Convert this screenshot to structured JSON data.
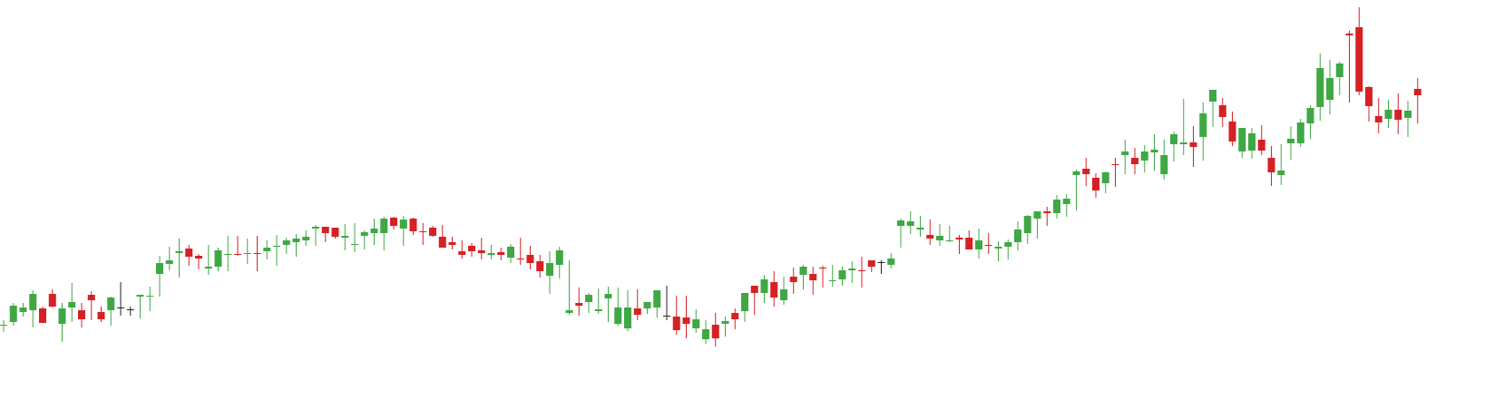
{
  "colors": {
    "up": "#3fa845",
    "down": "#d62124",
    "doji": "#222222",
    "background": "#ffffff"
  },
  "chart_data": {
    "type": "candlestick",
    "title": "",
    "xlabel": "",
    "ylabel": "",
    "grid": false,
    "legend": "none",
    "ylim": [
      0,
      452
    ],
    "x": [
      1,
      2,
      3,
      4,
      5,
      6,
      7,
      8,
      9,
      10,
      11,
      12,
      13,
      14,
      15,
      16,
      17,
      18,
      19,
      20,
      21,
      22,
      23,
      24,
      25,
      26,
      27,
      28,
      29,
      30,
      31,
      32,
      33,
      34,
      35,
      36,
      37,
      38,
      39,
      40,
      41,
      42,
      43,
      44,
      45,
      46,
      47,
      48,
      49,
      50,
      51,
      52,
      53,
      54,
      55,
      56,
      57,
      58,
      59,
      60,
      61,
      62,
      63,
      64,
      65,
      66,
      67,
      68,
      69,
      70,
      71,
      72,
      73,
      74,
      75,
      76,
      77,
      78,
      79,
      80,
      81,
      82,
      83,
      84,
      85,
      86,
      87,
      88,
      89,
      90,
      91,
      92,
      93,
      94,
      95,
      96,
      97,
      98,
      99,
      100,
      101,
      102,
      103,
      104,
      105,
      106,
      107,
      108,
      109,
      110,
      111,
      112,
      113,
      114,
      115,
      116,
      117,
      118,
      119,
      120,
      121,
      122,
      123,
      124,
      125,
      126,
      127,
      128,
      129,
      130,
      131,
      132,
      133,
      134,
      135,
      136,
      137,
      138,
      139,
      140,
      141,
      142,
      143,
      144,
      145,
      146
    ],
    "open": [
      93,
      97,
      108,
      110,
      112,
      128,
      95,
      113,
      110,
      127,
      108,
      110,
      113,
      111,
      125,
      125,
      150,
      161,
      173,
      178,
      170,
      156,
      158,
      171,
      172,
      172,
      173,
      175,
      180,
      182,
      185,
      187,
      200,
      202,
      201,
      190,
      182,
      192,
      195,
      195,
      212,
      200,
      211,
      197,
      201,
      191,
      185,
      175,
      181,
      176,
      171,
      174,
      168,
      167,
      171,
      164,
      148,
      160,
      107,
      118,
      119,
      109,
      123,
      95,
      90,
      112,
      112,
      113,
      104,
      103,
      102,
      90,
      78,
      94,
      95,
      107,
      109,
      137,
      129,
      141,
      121,
      147,
      149,
      150,
      157,
      142,
      144,
      154,
      154,
      165,
      163,
      160,
      203,
      203,
      199,
      193,
      187,
      186,
      190,
      190,
      177,
      182,
      178,
      180,
      185,
      195,
      211,
      219,
      217,
      227,
      259,
      266,
      256,
      250,
      271,
      281,
      278,
      275,
      284,
      260,
      293,
      293,
      295,
      301,
      340,
      336,
      318,
      285,
      286,
      298,
      278,
      259,
      294,
      294,
      316,
      334,
      342,
      367,
      415,
      422,
      356,
      324,
      321,
      331,
      322,
      354
    ],
    "close": [
      94,
      115,
      113,
      128,
      96,
      114,
      112,
      119,
      100,
      121,
      100,
      124,
      113,
      111,
      127,
      126,
      162,
      165,
      175,
      169,
      167,
      158,
      176,
      172,
      171,
      173,
      172,
      179,
      181,
      187,
      189,
      191,
      202,
      195,
      191,
      192,
      183,
      196,
      200,
      211,
      203,
      210,
      197,
      196,
      192,
      179,
      182,
      171,
      175,
      173,
      173,
      171,
      180,
      166,
      162,
      153,
      162,
      176,
      110,
      115,
      127,
      111,
      128,
      113,
      113,
      105,
      119,
      132,
      104,
      88,
      95,
      100,
      89,
      79,
      98,
      100,
      129,
      129,
      144,
      124,
      133,
      141,
      158,
      143,
      156,
      143,
      154,
      156,
      153,
      158,
      163,
      167,
      209,
      208,
      201,
      189,
      192,
      187,
      188,
      177,
      187,
      181,
      180,
      185,
      199,
      214,
      219,
      217,
      232,
      233,
      263,
      260,
      242,
      262,
      270,
      285,
      271,
      285,
      287,
      281,
      304,
      295,
      290,
      327,
      353,
      323,
      296,
      311,
      305,
      286,
      262,
      264,
      299,
      317,
      333,
      377,
      366,
      382,
      413,
      351,
      335,
      317,
      331,
      320,
      330,
      347
    ],
    "high": [
      99,
      118,
      118,
      132,
      114,
      133,
      118,
      140,
      118,
      131,
      114,
      125,
      141,
      114,
      127,
      136,
      170,
      180,
      189,
      182,
      172,
      182,
      179,
      192,
      192,
      189,
      192,
      187,
      193,
      190,
      194,
      198,
      204,
      202,
      201,
      205,
      206,
      198,
      211,
      213,
      213,
      214,
      212,
      206,
      203,
      204,
      191,
      187,
      184,
      190,
      182,
      179,
      183,
      190,
      181,
      171,
      175,
      180,
      165,
      135,
      129,
      134,
      136,
      135,
      132,
      133,
      118,
      132,
      137,
      126,
      126,
      111,
      99,
      107,
      103,
      112,
      126,
      134,
      149,
      153,
      147,
      157,
      160,
      158,
      159,
      160,
      158,
      164,
      169,
      161,
      165,
      173,
      211,
      219,
      214,
      210,
      205,
      203,
      193,
      198,
      200,
      195,
      186,
      188,
      208,
      215,
      219,
      224,
      237,
      238,
      265,
      278,
      261,
      263,
      278,
      298,
      289,
      292,
      304,
      298,
      307,
      343,
      313,
      339,
      353,
      344,
      329,
      310,
      311,
      314,
      291,
      293,
      313,
      321,
      336,
      393,
      386,
      384,
      418,
      444,
      357,
      344,
      342,
      349,
      341,
      366
    ],
    "low": [
      86,
      93,
      103,
      91,
      96,
      113,
      75,
      97,
      91,
      99,
      97,
      93,
      104,
      104,
      101,
      109,
      125,
      154,
      146,
      159,
      155,
      149,
      153,
      153,
      170,
      161,
      153,
      166,
      159,
      172,
      169,
      181,
      181,
      185,
      189,
      176,
      174,
      177,
      182,
      176,
      199,
      181,
      193,
      182,
      191,
      179,
      177,
      167,
      169,
      166,
      166,
      165,
      162,
      160,
      155,
      146,
      128,
      145,
      105,
      104,
      107,
      106,
      97,
      93,
      87,
      99,
      106,
      102,
      99,
      83,
      79,
      85,
      73,
      70,
      81,
      89,
      97,
      105,
      118,
      114,
      116,
      128,
      133,
      127,
      135,
      136,
      137,
      140,
      135,
      152,
      150,
      156,
      179,
      194,
      191,
      182,
      181,
      185,
      172,
      179,
      167,
      172,
      164,
      166,
      176,
      183,
      189,
      203,
      211,
      213,
      220,
      247,
      234,
      239,
      246,
      260,
      260,
      262,
      264,
      254,
      274,
      281,
      268,
      275,
      312,
      312,
      291,
      278,
      277,
      281,
      247,
      248,
      276,
      290,
      299,
      319,
      326,
      347,
      339,
      347,
      318,
      305,
      311,
      304,
      301,
      316
    ]
  }
}
